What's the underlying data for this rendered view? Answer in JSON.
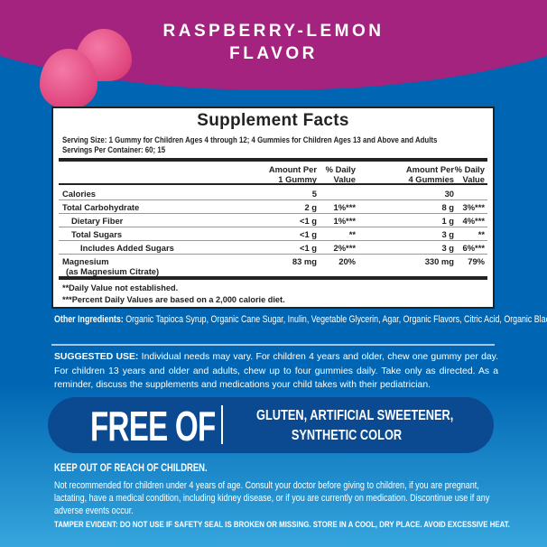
{
  "header": {
    "flavor_line1": "RASPBERRY-LEMON",
    "flavor_line2": "FLAVOR"
  },
  "colors": {
    "magenta": "#a3237e",
    "blue": "#0066b3",
    "dark_blue": "#0b4a90",
    "gummy": "#e0467e"
  },
  "facts": {
    "title": "Supplement Facts",
    "serving_size": "Serving Size: 1 Gummy for Children Ages 4 through 12; 4 Gummies for Children Ages 13 and Above and Adults",
    "servings_per_container": "Servings Per Container: 60; 15",
    "columns": {
      "amount1_a": "Amount Per",
      "amount1_b": "1 Gummy",
      "dv1_a": "% Daily",
      "dv1_b": "Value",
      "amount4_a": "Amount Per",
      "amount4_b": "4 Gummies",
      "dv4_a": "% Daily",
      "dv4_b": "Value"
    },
    "rows": [
      {
        "label": "Calories",
        "a1": "5",
        "dv1": "",
        "a4": "30",
        "dv4": ""
      },
      {
        "label": "Total Carbohydrate",
        "a1": "2 g",
        "dv1": "1%***",
        "a4": "8 g",
        "dv4": "3%***"
      },
      {
        "label": "Dietary Fiber",
        "a1": "<1 g",
        "dv1": "1%***",
        "a4": "1 g",
        "dv4": "4%***"
      },
      {
        "label": "Total Sugars",
        "a1": "<1 g",
        "dv1": "**",
        "a4": "3 g",
        "dv4": "**"
      },
      {
        "label": "Includes Added Sugars",
        "a1": "<1 g",
        "dv1": "2%***",
        "a4": "3 g",
        "dv4": "6%***"
      },
      {
        "label": "Magnesium",
        "sublabel": "(as Magnesium Citrate)",
        "a1": "83 mg",
        "dv1": "20%",
        "a4": "330 mg",
        "dv4": "79%"
      }
    ],
    "footnote1": "**Daily Value not established.",
    "footnote2": "***Percent Daily Values are based on a 2,000 calorie diet."
  },
  "ingredients": {
    "label": "Other Ingredients:",
    "text": " Organic Tapioca Syrup, Organic Cane Sugar, Inulin, Vegetable Glycerin, Agar, Organic Flavors, Citric Acid, Organic Black Carrot (color), Locust Bean Gum."
  },
  "suggested_use": {
    "label": "SUGGESTED USE:",
    "text": " Individual needs may vary. For children 4 years and older, chew one gummy per day. For children 13 years and older and adults, chew up to four gummies daily. Take only as directed. As a reminder, discuss the supplements and medications your child takes with their pediatrician."
  },
  "free_of": {
    "title": "FREE OF",
    "line1": "GLUTEN, ARTIFICIAL SWEETENER,",
    "line2": "SYNTHETIC COLOR"
  },
  "warnings": {
    "keep_out": "KEEP OUT OF REACH OF CHILDREN.",
    "not_recommended": "Not recommended for children under 4 years of age. Consult your doctor before giving to children, if you are pregnant, lactating, have a medical condition, including kidney disease, or if you are currently on medication. Discontinue use if any adverse events occur.",
    "tamper": "TAMPER EVIDENT: DO NOT USE IF SAFETY SEAL IS BROKEN OR MISSING. STORE IN A COOL, DRY PLACE. AVOID EXCESSIVE HEAT."
  }
}
